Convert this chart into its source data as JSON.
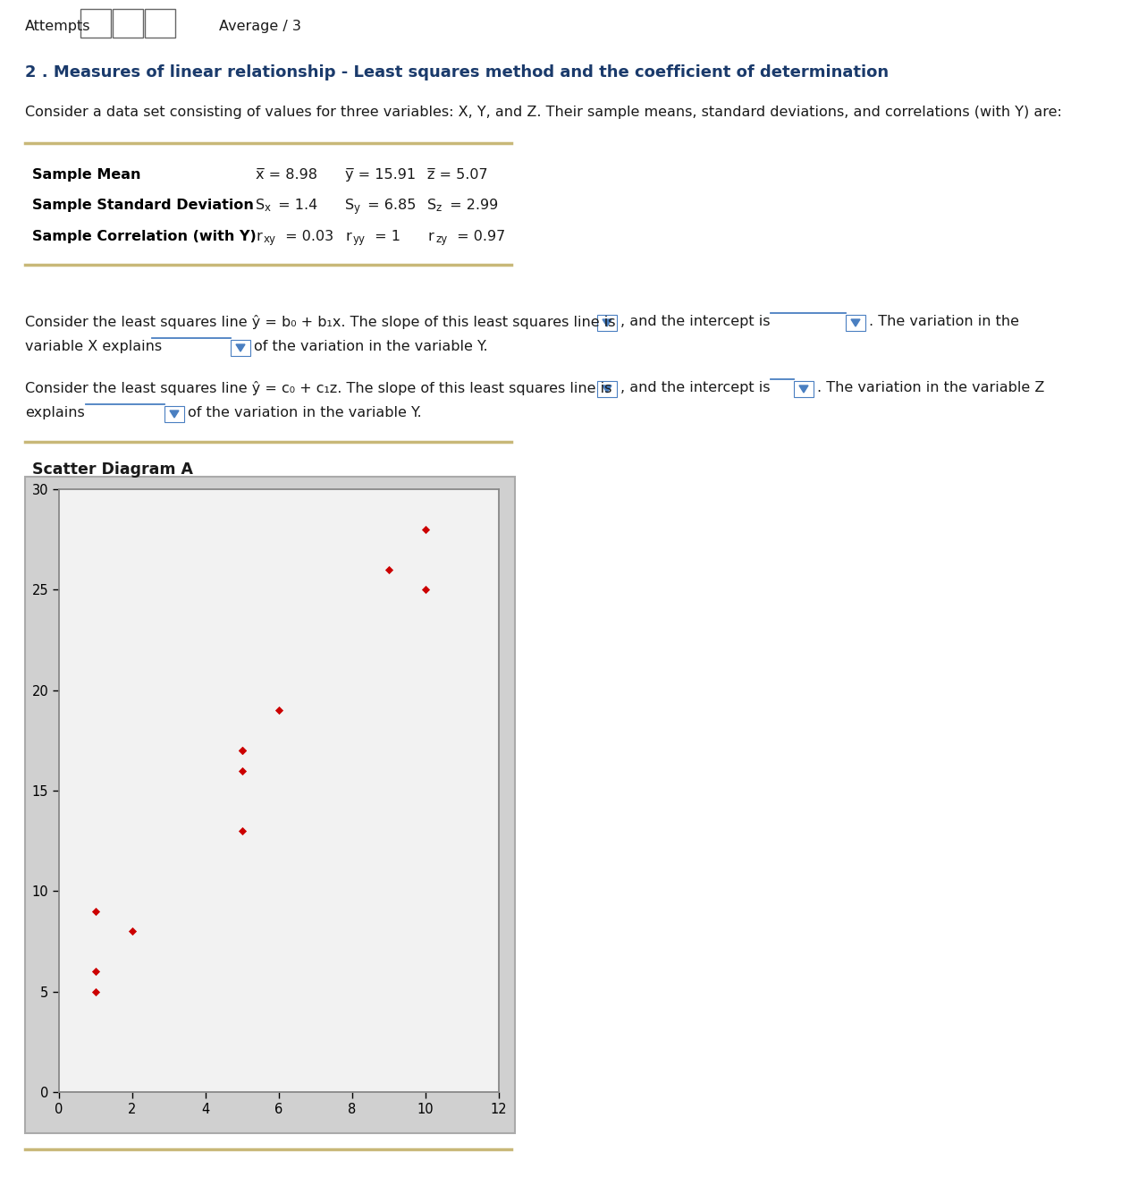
{
  "title_text": "2 . Measures of linear relationship - Least squares method and the coefficient of determination",
  "attempts_label": "Attempts",
  "average_label": "Average / 3",
  "intro_text": "Consider a data set consisting of values for three variables: X, Y, and Z. Their sample means, standard deviations, and correlations (with Y) are:",
  "row_labels": [
    "Sample Mean",
    "Sample Standard Deviation",
    "Sample Correlation (with Y)"
  ],
  "row1_vals": [
    "x̅ = 8.98",
    "y̅ = 15.91",
    "z̅ = 5.07"
  ],
  "row2_label_parts": [
    "S",
    "x",
    " = 1.4",
    "S",
    "y",
    " = 6.85",
    "S",
    "z",
    " = 2.99"
  ],
  "row3_label_parts": [
    "r",
    "xy",
    " = 0.03",
    "r",
    "yy",
    " = 1",
    "r",
    "zy",
    " = 0.97"
  ],
  "scatter_title": "Scatter Diagram A",
  "scatter_x": [
    1,
    1,
    1,
    2,
    5,
    5,
    5,
    5,
    6,
    9,
    10,
    10
  ],
  "scatter_y": [
    9,
    6,
    5,
    8,
    17,
    17,
    16,
    13,
    19,
    26,
    28,
    25
  ],
  "scatter_color": "#cc0000",
  "bg_color": "#ffffff",
  "title_color": "#1a3a6b",
  "text_color": "#1a1a1a",
  "bold_color": "#000000",
  "line_color": "#c8b878",
  "dropdown_color": "#4a7fc1",
  "x_lim": [
    0,
    12
  ],
  "y_lim": [
    0,
    30
  ],
  "x_ticks": [
    0,
    2,
    4,
    6,
    8,
    10,
    12
  ],
  "y_ticks": [
    0,
    5,
    10,
    15,
    20,
    25,
    30
  ]
}
